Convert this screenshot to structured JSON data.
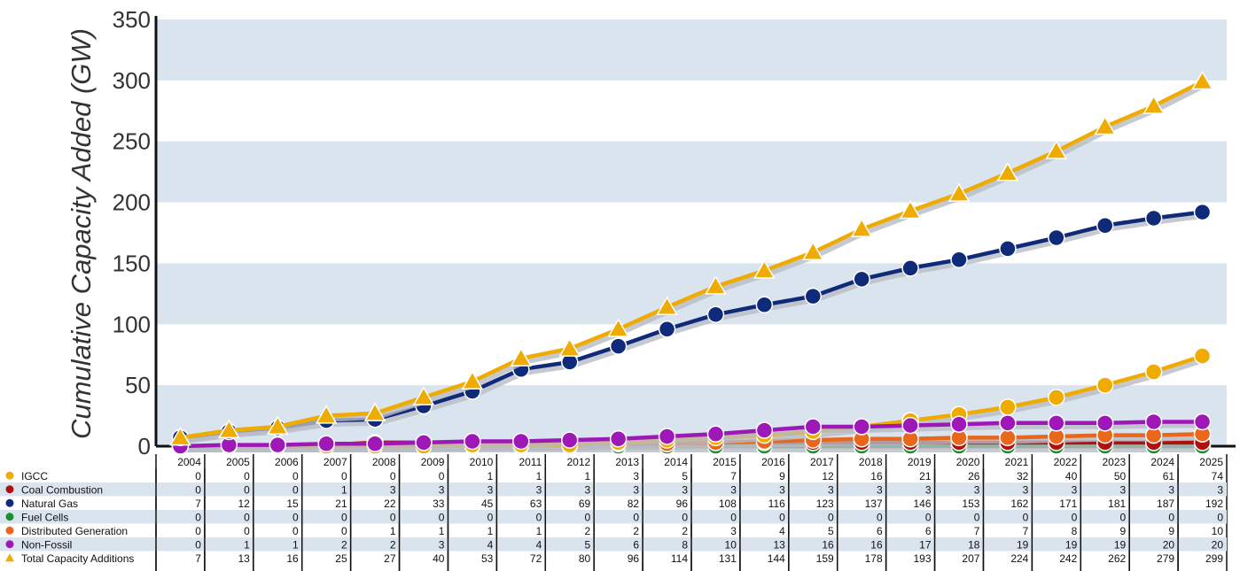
{
  "chart_data": {
    "type": "line",
    "title": "",
    "ylabel": "Cumulative Capacity Added (GW)",
    "xlabel": "",
    "ylim": [
      0,
      350
    ],
    "yticks": [
      0,
      50,
      100,
      150,
      200,
      250,
      300,
      350
    ],
    "grid": "alternating horizontal bands",
    "legend": "data table below chart",
    "categories": [
      "2004",
      "2005",
      "2006",
      "2007",
      "2008",
      "2009",
      "2010",
      "2011",
      "2012",
      "2013",
      "2014",
      "2015",
      "2016",
      "2017",
      "2018",
      "2019",
      "2020",
      "2021",
      "2022",
      "2023",
      "2024",
      "2025"
    ],
    "series": [
      {
        "name": "IGCC",
        "color": "#f0ab00",
        "marker": "circle",
        "values": [
          0,
          0,
          0,
          0,
          0,
          0,
          1,
          1,
          1,
          3,
          5,
          7,
          9,
          12,
          16,
          21,
          26,
          32,
          40,
          50,
          61,
          74
        ]
      },
      {
        "name": "Coal Combustion",
        "color": "#b01010",
        "marker": "circle",
        "values": [
          0,
          0,
          0,
          1,
          3,
          3,
          3,
          3,
          3,
          3,
          3,
          3,
          3,
          3,
          3,
          3,
          3,
          3,
          3,
          3,
          3,
          3
        ]
      },
      {
        "name": "Natural Gas",
        "color": "#102a7a",
        "marker": "circle",
        "values": [
          7,
          12,
          15,
          21,
          22,
          33,
          45,
          63,
          69,
          82,
          96,
          108,
          116,
          123,
          137,
          146,
          153,
          162,
          171,
          181,
          187,
          192
        ]
      },
      {
        "name": "Fuel Cells",
        "color": "#1e8f2e",
        "marker": "circle",
        "values": [
          0,
          0,
          0,
          0,
          0,
          0,
          0,
          0,
          0,
          0,
          0,
          0,
          0,
          0,
          0,
          0,
          0,
          0,
          0,
          0,
          0,
          0
        ]
      },
      {
        "name": "Distributed Generation",
        "color": "#e8671a",
        "marker": "circle",
        "values": [
          0,
          0,
          0,
          0,
          1,
          1,
          1,
          1,
          2,
          2,
          2,
          3,
          4,
          5,
          6,
          6,
          7,
          7,
          8,
          9,
          9,
          10
        ]
      },
      {
        "name": "Non-Fossil",
        "color": "#9e18b8",
        "marker": "circle",
        "values": [
          0,
          1,
          1,
          2,
          2,
          3,
          4,
          4,
          5,
          6,
          8,
          10,
          13,
          16,
          16,
          17,
          18,
          19,
          19,
          19,
          20,
          20
        ]
      },
      {
        "name": "Total Capacity Additions",
        "color": "#f0ab00",
        "marker": "triangle",
        "values": [
          7,
          13,
          16,
          25,
          27,
          40,
          53,
          72,
          80,
          96,
          114,
          131,
          144,
          159,
          178,
          193,
          207,
          224,
          242,
          262,
          279,
          299
        ]
      }
    ],
    "draw_order": [
      3,
      1,
      4,
      0,
      5,
      2,
      6
    ],
    "band_color": "#d9e4ef"
  }
}
